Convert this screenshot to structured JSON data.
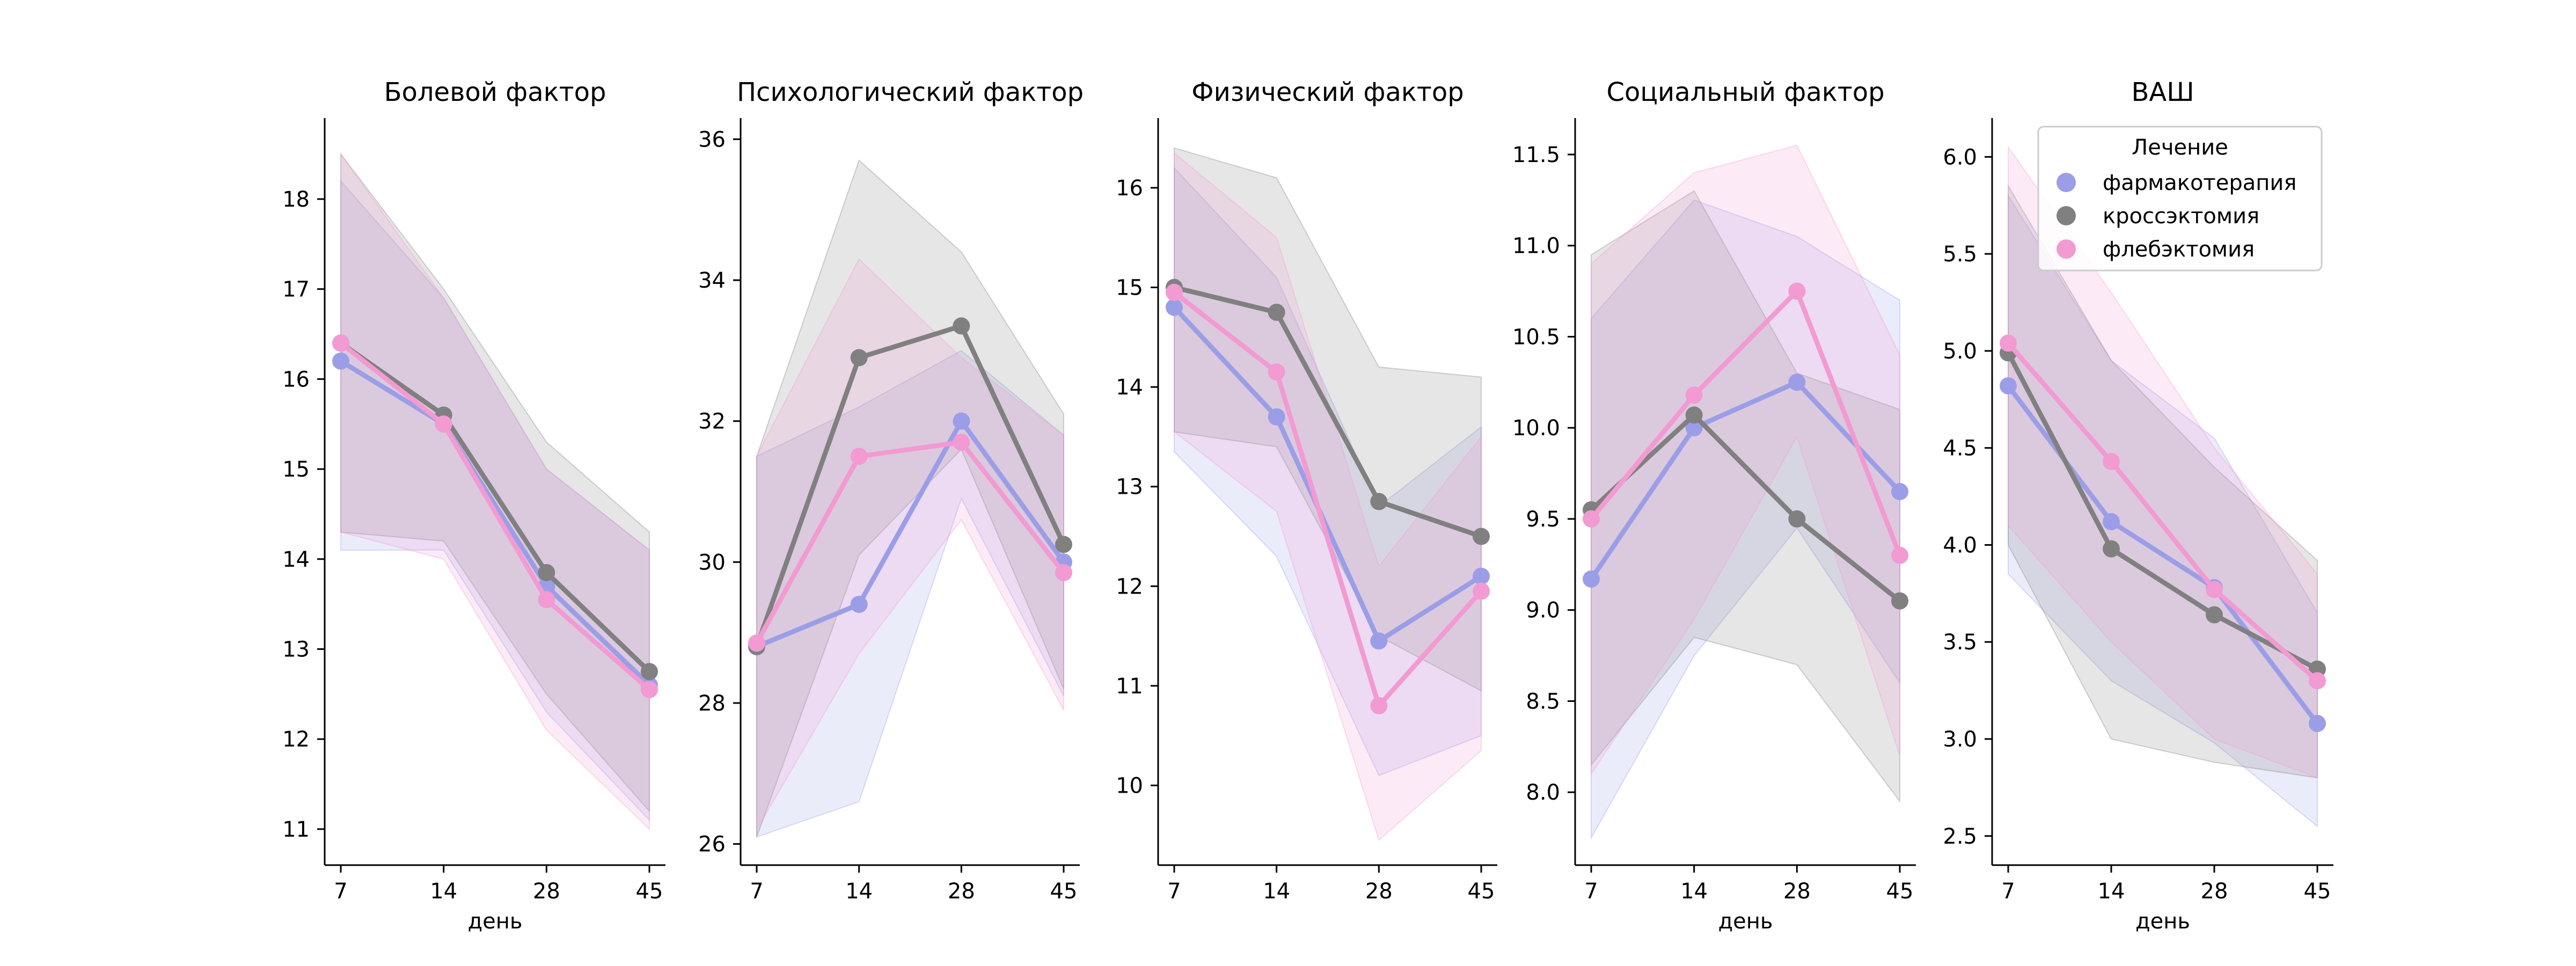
{
  "chart_data": [
    {
      "type": "line",
      "title": "Болевой фактор",
      "xlabel": "день",
      "ylabel": "",
      "categories": [
        "7",
        "14",
        "28",
        "45"
      ],
      "ylim": [
        10.6,
        18.9
      ],
      "yticks": [
        11,
        12,
        13,
        14,
        15,
        16,
        17,
        18
      ],
      "series": [
        {
          "name": "фармакотерапия",
          "values": [
            16.2,
            15.5,
            13.7,
            12.6
          ],
          "ci_low": [
            14.1,
            14.1,
            12.3,
            11.1
          ],
          "ci_high": [
            18.2,
            16.9,
            15.0,
            14.1
          ]
        },
        {
          "name": "кроссэктомия",
          "values": [
            16.4,
            15.6,
            13.85,
            12.75
          ],
          "ci_low": [
            14.3,
            14.2,
            12.5,
            11.2
          ],
          "ci_high": [
            18.5,
            17.0,
            15.3,
            14.3
          ]
        },
        {
          "name": "флебэктомия",
          "values": [
            16.4,
            15.5,
            13.55,
            12.55
          ],
          "ci_low": [
            14.3,
            14.0,
            12.1,
            11.0
          ],
          "ci_high": [
            18.5,
            16.9,
            15.0,
            14.1
          ]
        }
      ]
    },
    {
      "type": "line",
      "title": "Психологический фактор",
      "xlabel": "",
      "ylabel": "",
      "categories": [
        "7",
        "14",
        "28",
        "45"
      ],
      "ylim": [
        25.7,
        36.3
      ],
      "yticks": [
        26,
        28,
        30,
        32,
        34,
        36
      ],
      "series": [
        {
          "name": "фармакотерапия",
          "values": [
            28.8,
            29.4,
            32.0,
            30.0
          ],
          "ci_low": [
            26.1,
            26.6,
            30.9,
            28.1
          ],
          "ci_high": [
            31.5,
            32.2,
            33.0,
            31.8
          ]
        },
        {
          "name": "кроссэктомия",
          "values": [
            28.8,
            32.9,
            33.35,
            30.25
          ],
          "ci_low": [
            26.1,
            30.1,
            31.6,
            28.2
          ],
          "ci_high": [
            31.5,
            35.7,
            34.4,
            32.1
          ]
        },
        {
          "name": "флебэктомия",
          "values": [
            28.85,
            31.5,
            31.7,
            29.85
          ],
          "ci_low": [
            26.2,
            28.7,
            30.6,
            27.9
          ],
          "ci_high": [
            31.5,
            34.3,
            32.9,
            31.8
          ]
        }
      ]
    },
    {
      "type": "line",
      "title": "Физический фактор",
      "xlabel": "",
      "ylabel": "",
      "categories": [
        "7",
        "14",
        "28",
        "45"
      ],
      "ylim": [
        9.2,
        16.7
      ],
      "yticks": [
        10,
        11,
        12,
        13,
        14,
        15,
        16
      ],
      "series": [
        {
          "name": "фармакотерапия",
          "values": [
            14.8,
            13.7,
            11.45,
            12.1
          ],
          "ci_low": [
            13.35,
            12.3,
            10.1,
            10.5
          ],
          "ci_high": [
            16.2,
            15.1,
            12.8,
            13.6
          ]
        },
        {
          "name": "кроссэктомия",
          "values": [
            15.0,
            14.75,
            12.85,
            12.5
          ],
          "ci_low": [
            13.55,
            13.4,
            11.5,
            10.95
          ],
          "ci_high": [
            16.4,
            16.1,
            14.2,
            14.1
          ]
        },
        {
          "name": "флебэктомия",
          "values": [
            14.95,
            14.15,
            10.8,
            11.95
          ],
          "ci_low": [
            13.55,
            12.75,
            9.45,
            10.35
          ],
          "ci_high": [
            16.35,
            15.5,
            12.2,
            13.5
          ]
        }
      ]
    },
    {
      "type": "line",
      "title": "Социальный фактор",
      "xlabel": "день",
      "ylabel": "",
      "categories": [
        "7",
        "14",
        "28",
        "45"
      ],
      "ylim": [
        7.6,
        11.7
      ],
      "yticks": [
        8.0,
        8.5,
        9.0,
        9.5,
        10.0,
        10.5,
        11.0,
        11.5
      ],
      "yticklabels": [
        "8.0",
        "8.5",
        "9.0",
        "9.5",
        "10.0",
        "10.5",
        "11.0",
        "11.5"
      ],
      "series": [
        {
          "name": "фармакотерапия",
          "values": [
            9.17,
            10.0,
            10.25,
            9.65
          ],
          "ci_low": [
            7.75,
            8.75,
            9.45,
            8.6
          ],
          "ci_high": [
            10.6,
            11.25,
            11.05,
            10.7
          ]
        },
        {
          "name": "кроссэктомия",
          "values": [
            9.55,
            10.07,
            9.5,
            9.05
          ],
          "ci_low": [
            8.15,
            8.85,
            8.7,
            7.95
          ],
          "ci_high": [
            10.95,
            11.3,
            10.3,
            10.1
          ]
        },
        {
          "name": "флебэктомия",
          "values": [
            9.5,
            10.18,
            10.75,
            9.3
          ],
          "ci_low": [
            8.1,
            8.95,
            9.95,
            8.2
          ],
          "ci_high": [
            10.9,
            11.4,
            11.55,
            10.4
          ]
        }
      ]
    },
    {
      "type": "line",
      "title": "ВАШ",
      "xlabel": "день",
      "ylabel": "",
      "categories": [
        "7",
        "14",
        "28",
        "45"
      ],
      "ylim": [
        2.35,
        6.2
      ],
      "yticks": [
        2.5,
        3.0,
        3.5,
        4.0,
        4.5,
        5.0,
        5.5,
        6.0
      ],
      "yticklabels": [
        "2.5",
        "3.0",
        "3.5",
        "4.0",
        "4.5",
        "5.0",
        "5.5",
        "6.0"
      ],
      "legend": {
        "title": "Лечение",
        "entries": [
          "фармакотерапия",
          "кроссэктомия",
          "флебэктомия"
        ],
        "placement": "top-right"
      },
      "series": [
        {
          "name": "фармакотерапия",
          "values": [
            4.82,
            4.12,
            3.78,
            3.08
          ],
          "ci_low": [
            3.85,
            3.3,
            2.98,
            2.55
          ],
          "ci_high": [
            5.8,
            4.95,
            4.55,
            3.65
          ]
        },
        {
          "name": "кроссэктомия",
          "values": [
            4.99,
            3.98,
            3.64,
            3.36
          ],
          "ci_low": [
            4.0,
            3.0,
            2.88,
            2.8
          ],
          "ci_high": [
            5.85,
            4.95,
            4.4,
            3.92
          ]
        },
        {
          "name": "флебэктомия",
          "values": [
            5.04,
            4.43,
            3.77,
            3.3
          ],
          "ci_low": [
            4.1,
            3.5,
            3.0,
            2.8
          ],
          "ci_high": [
            6.05,
            5.3,
            4.5,
            3.85
          ]
        }
      ]
    }
  ],
  "colors": {
    "фармакотерапия": "#9b9ee6",
    "кроссэктомия": "#808080",
    "флебэктомия": "#f29ad2"
  }
}
